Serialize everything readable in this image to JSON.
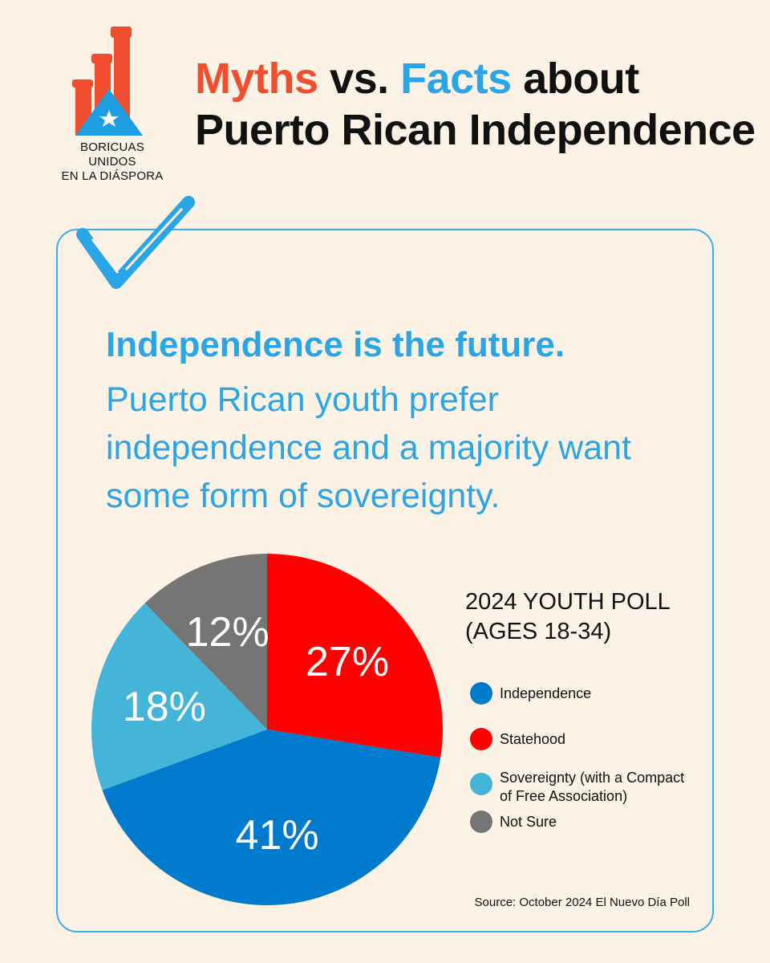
{
  "logo": {
    "line1": "BORICUAS UNIDOS",
    "line2": "EN LA DIÁSPORA"
  },
  "title": {
    "myths": "Myths",
    "vs": "vs.",
    "facts": "Facts",
    "about": "about",
    "line2": "Puerto Rican Independence"
  },
  "headline": "Independence is the future.",
  "subtext": "Puerto Rican youth prefer independence and a majority want some form of sovereignty.",
  "poll": {
    "title_line1": "2024 YOUTH POLL",
    "title_line2": "(AGES 18-34)"
  },
  "source": "Source: October 2024 El Nuevo Día Poll",
  "colors": {
    "accent_blue": "#2aa6e8",
    "accent_red": "#f04e2e",
    "background": "#fdf2e6"
  },
  "chart_data": {
    "type": "pie",
    "slices": [
      {
        "label": "Statehood",
        "value": 27,
        "display": "27%",
        "color": "#fe0000"
      },
      {
        "label": "Independence",
        "value": 41,
        "display": "41%",
        "color": "#007acd"
      },
      {
        "label": "Sovereignty (with a Compact of Free Association)",
        "value": 18,
        "display": "18%",
        "color": "#44b5d8"
      },
      {
        "label": "Not Sure",
        "value": 12,
        "display": "12%",
        "color": "#757575"
      }
    ],
    "legend": [
      {
        "label": "Independence",
        "color": "#007acd"
      },
      {
        "label": "Statehood",
        "color": "#fe0000"
      },
      {
        "label": "Sovereignty (with a Compact of Free Association)",
        "color": "#44b5d8"
      },
      {
        "label": "Not Sure",
        "color": "#757575"
      }
    ]
  }
}
